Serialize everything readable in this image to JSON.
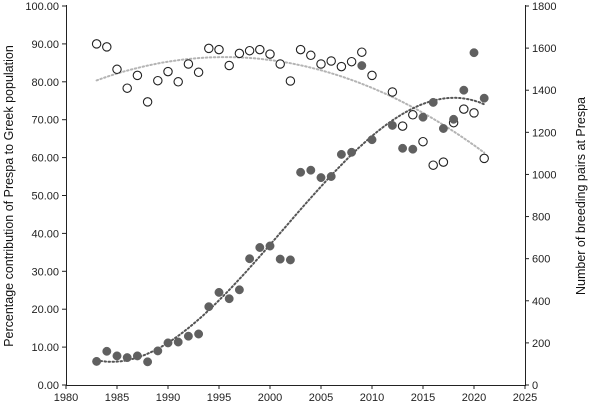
{
  "chart_data": {
    "type": "scatter",
    "title": "",
    "xlabel": "",
    "ylabel_left": "Percentage contribution of Prespa to Greek population",
    "ylabel_right": "Number of breeding pairs at Prespa",
    "xlim": [
      1980,
      2025
    ],
    "ylim_left": [
      0,
      100
    ],
    "ylim_right": [
      0,
      1800
    ],
    "x_ticks": [
      "1980",
      "1985",
      "1990",
      "1995",
      "2000",
      "2005",
      "2010",
      "2015",
      "2020",
      "2025"
    ],
    "y_left_ticks": [
      "0.00",
      "10.00",
      "20.00",
      "30.00",
      "40.00",
      "50.00",
      "60.00",
      "70.00",
      "80.00",
      "90.00",
      "100.00"
    ],
    "y_right_ticks": [
      "0",
      "200",
      "400",
      "600",
      "800",
      "1000",
      "1200",
      "1400",
      "1600",
      "1800"
    ],
    "grid": false,
    "legend": "none",
    "series": [
      {
        "axis": "left",
        "marker": "open-circle",
        "trend": "polynomial-dotted",
        "trend_color": "#b4b4b4",
        "color": "#222222",
        "points": [
          [
            1983,
            90.0
          ],
          [
            1984,
            89.2
          ],
          [
            1985,
            83.3
          ],
          [
            1986,
            78.3
          ],
          [
            1987,
            81.7
          ],
          [
            1988,
            74.7
          ],
          [
            1989,
            80.3
          ],
          [
            1990,
            82.7
          ],
          [
            1991,
            80.0
          ],
          [
            1992,
            84.7
          ],
          [
            1993,
            82.5
          ],
          [
            1994,
            88.8
          ],
          [
            1995,
            88.5
          ],
          [
            1996,
            84.3
          ],
          [
            1997,
            87.5
          ],
          [
            1998,
            88.2
          ],
          [
            1999,
            88.5
          ],
          [
            2000,
            87.3
          ],
          [
            2001,
            84.7
          ],
          [
            2002,
            80.2
          ],
          [
            2003,
            88.5
          ],
          [
            2004,
            87.0
          ],
          [
            2005,
            84.7
          ],
          [
            2006,
            85.5
          ],
          [
            2007,
            84.0
          ],
          [
            2008,
            85.3
          ],
          [
            2009,
            87.8
          ],
          [
            2010,
            81.7
          ],
          [
            2012,
            77.3
          ],
          [
            2013,
            68.3
          ],
          [
            2014,
            71.3
          ],
          [
            2015,
            64.2
          ],
          [
            2016,
            58.0
          ],
          [
            2017,
            58.8
          ],
          [
            2018,
            69.2
          ],
          [
            2019,
            72.8
          ],
          [
            2020,
            71.8
          ],
          [
            2021,
            59.8
          ]
        ]
      },
      {
        "axis": "right",
        "marker": "filled-circle",
        "trend": "sigmoid-dotted",
        "trend_color": "#555555",
        "color": "#606060",
        "points": [
          [
            1983,
            112
          ],
          [
            1984,
            160
          ],
          [
            1985,
            138
          ],
          [
            1986,
            130
          ],
          [
            1987,
            138
          ],
          [
            1988,
            110
          ],
          [
            1989,
            162
          ],
          [
            1990,
            200
          ],
          [
            1991,
            204
          ],
          [
            1992,
            232
          ],
          [
            1993,
            242
          ],
          [
            1994,
            372
          ],
          [
            1995,
            440
          ],
          [
            1996,
            410
          ],
          [
            1997,
            452
          ],
          [
            1998,
            600
          ],
          [
            1999,
            653
          ],
          [
            2000,
            660
          ],
          [
            2001,
            598
          ],
          [
            2002,
            594
          ],
          [
            2003,
            1010
          ],
          [
            2004,
            1020
          ],
          [
            2005,
            985
          ],
          [
            2006,
            990
          ],
          [
            2007,
            1095
          ],
          [
            2008,
            1105
          ],
          [
            2009,
            1517
          ],
          [
            2010,
            1165
          ],
          [
            2012,
            1233
          ],
          [
            2013,
            1124
          ],
          [
            2014,
            1120
          ],
          [
            2015,
            1272
          ],
          [
            2016,
            1342
          ],
          [
            2017,
            1218
          ],
          [
            2018,
            1262
          ],
          [
            2019,
            1400
          ],
          [
            2020,
            1578
          ],
          [
            2021,
            1362
          ]
        ]
      }
    ]
  }
}
